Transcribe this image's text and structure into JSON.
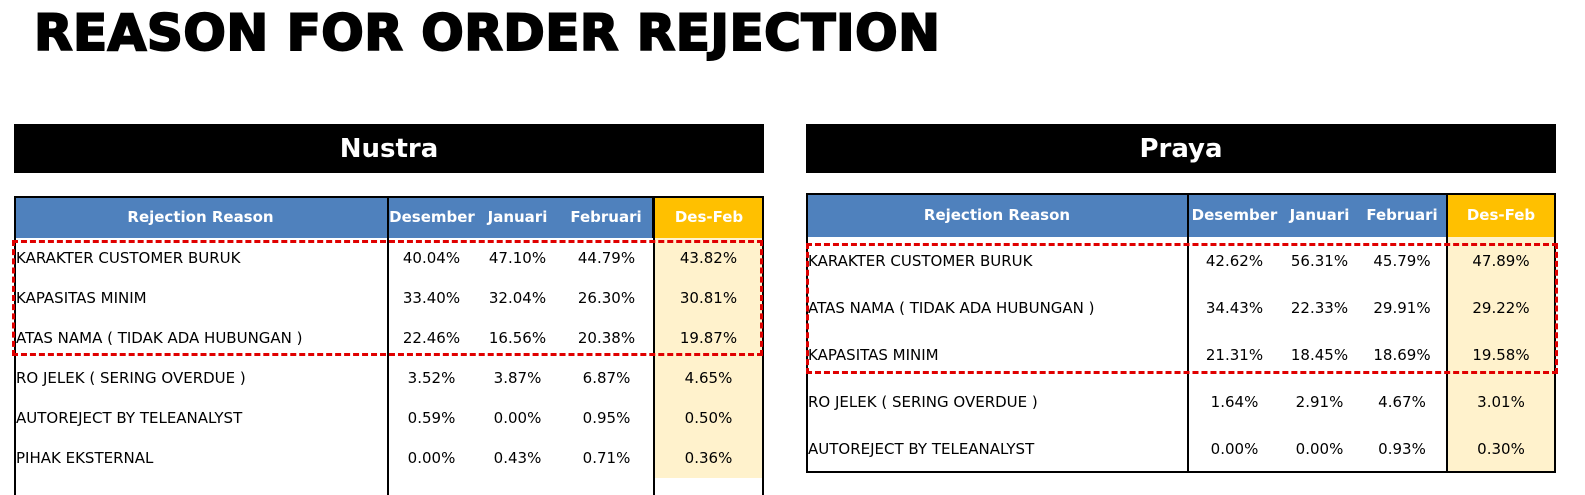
{
  "title": "REASON FOR ORDER REJECTION",
  "colors": {
    "header_blue": "#4f81bd",
    "desfeb_header": "#ffc000",
    "desfeb_cell": "#fff2cc",
    "highlight": "#e00000"
  },
  "panels": [
    {
      "name": "Nustra",
      "headers": [
        "Rejection Reason",
        "Desember",
        "Januari",
        "Februari",
        "Des-Feb"
      ],
      "rows": [
        [
          "KARAKTER CUSTOMER BURUK",
          "40.04%",
          "47.10%",
          "44.79%",
          "43.82%"
        ],
        [
          "KAPASITAS MINIM",
          "33.40%",
          "32.04%",
          "26.30%",
          "30.81%"
        ],
        [
          "ATAS NAMA ( TIDAK ADA HUBUNGAN )",
          "22.46%",
          "16.56%",
          "20.38%",
          "19.87%"
        ],
        [
          "RO JELEK ( SERING OVERDUE )",
          "3.52%",
          "3.87%",
          "6.87%",
          "4.65%"
        ],
        [
          "AUTOREJECT BY TELEANALYST",
          "0.59%",
          "0.00%",
          "0.95%",
          "0.50%"
        ],
        [
          "PIHAK EKSTERNAL",
          "0.00%",
          "0.43%",
          "0.71%",
          "0.36%"
        ]
      ]
    },
    {
      "name": "Praya",
      "headers": [
        "Rejection Reason",
        "Desember",
        "Januari",
        "Februari",
        "Des-Feb"
      ],
      "rows": [
        [
          "KARAKTER CUSTOMER BURUK",
          "42.62%",
          "56.31%",
          "45.79%",
          "47.89%"
        ],
        [
          "ATAS NAMA ( TIDAK ADA HUBUNGAN )",
          "34.43%",
          "22.33%",
          "29.91%",
          "29.22%"
        ],
        [
          "KAPASITAS MINIM",
          "21.31%",
          "18.45%",
          "18.69%",
          "19.58%"
        ],
        [
          "RO JELEK ( SERING OVERDUE )",
          "1.64%",
          "2.91%",
          "4.67%",
          "3.01%"
        ],
        [
          "AUTOREJECT BY TELEANALYST",
          "0.00%",
          "0.00%",
          "0.93%",
          "0.30%"
        ]
      ]
    }
  ]
}
